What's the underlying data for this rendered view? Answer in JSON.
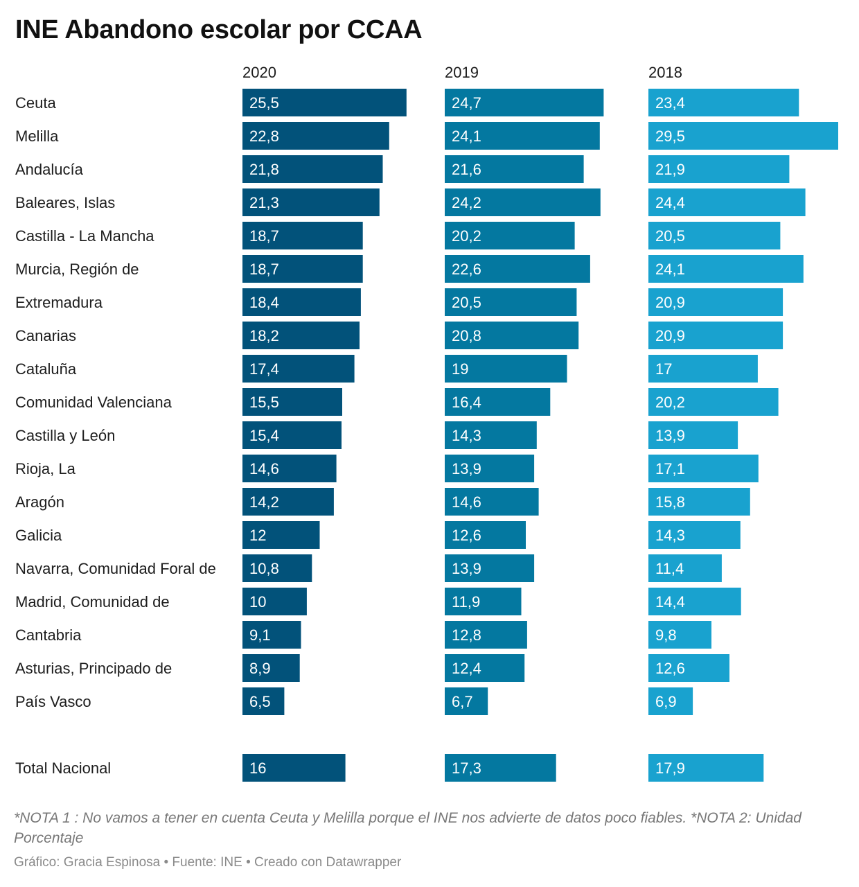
{
  "title": "INE Abandono escolar por CCAA",
  "note": "*NOTA 1 : No vamos a tener en cuenta Ceuta y Melilla porque el INE nos advierte de datos poco fiables. *NOTA 2: Unidad Porcentaje",
  "credit": "Gráfico: Gracia Espinosa • Fuente: INE • Creado con Datawrapper",
  "colors": {
    "2020": "#02527a",
    "2019": "#0478a0",
    "2018": "#19a2cf"
  },
  "chart_data": {
    "type": "bar",
    "orientation": "horizontal",
    "categories": [
      "Ceuta",
      "Melilla",
      "Andalucía",
      "Baleares, Islas",
      "Castilla - La Mancha",
      "Murcia, Región de",
      "Extremadura",
      "Canarias",
      "Cataluña",
      "Comunidad Valenciana",
      "Castilla y León",
      "Rioja, La",
      "Aragón",
      "Galicia",
      "Navarra, Comunidad Foral de",
      "Madrid, Comunidad de",
      "Cantabria",
      "Asturias, Principado de",
      "País Vasco"
    ],
    "series": [
      {
        "name": "2020",
        "values": [
          25.5,
          22.8,
          21.8,
          21.3,
          18.7,
          18.7,
          18.4,
          18.2,
          17.4,
          15.5,
          15.4,
          14.6,
          14.2,
          12,
          10.8,
          10,
          9.1,
          8.9,
          6.5
        ],
        "labels": [
          "25,5",
          "22,8",
          "21,8",
          "21,3",
          "18,7",
          "18,7",
          "18,4",
          "18,2",
          "17,4",
          "15,5",
          "15,4",
          "14,6",
          "14,2",
          "12",
          "10,8",
          "10",
          "9,1",
          "8,9",
          "6,5"
        ]
      },
      {
        "name": "2019",
        "values": [
          24.7,
          24.1,
          21.6,
          24.2,
          20.2,
          22.6,
          20.5,
          20.8,
          19,
          16.4,
          14.3,
          13.9,
          14.6,
          12.6,
          13.9,
          11.9,
          12.8,
          12.4,
          6.7
        ],
        "labels": [
          "24,7",
          "24,1",
          "21,6",
          "24,2",
          "20,2",
          "22,6",
          "20,5",
          "20,8",
          "19",
          "16,4",
          "14,3",
          "13,9",
          "14,6",
          "12,6",
          "13,9",
          "11,9",
          "12,8",
          "12,4",
          "6,7"
        ]
      },
      {
        "name": "2018",
        "values": [
          23.4,
          29.5,
          21.9,
          24.4,
          20.5,
          24.1,
          20.9,
          20.9,
          17,
          20.2,
          13.9,
          17.1,
          15.8,
          14.3,
          11.4,
          14.4,
          9.8,
          12.6,
          6.9
        ],
        "labels": [
          "23,4",
          "29,5",
          "21,9",
          "24,4",
          "20,5",
          "24,1",
          "20,9",
          "20,9",
          "17",
          "20,2",
          "13,9",
          "17,1",
          "15,8",
          "14,3",
          "11,4",
          "14,4",
          "9,8",
          "12,6",
          "6,9"
        ]
      }
    ],
    "total": {
      "category": "Total Nacional",
      "values": [
        16,
        17.3,
        17.9
      ],
      "labels": [
        "16",
        "17,3",
        "17,9"
      ]
    },
    "xlim": [
      0,
      29.5
    ],
    "grid": false,
    "legend": "none"
  }
}
